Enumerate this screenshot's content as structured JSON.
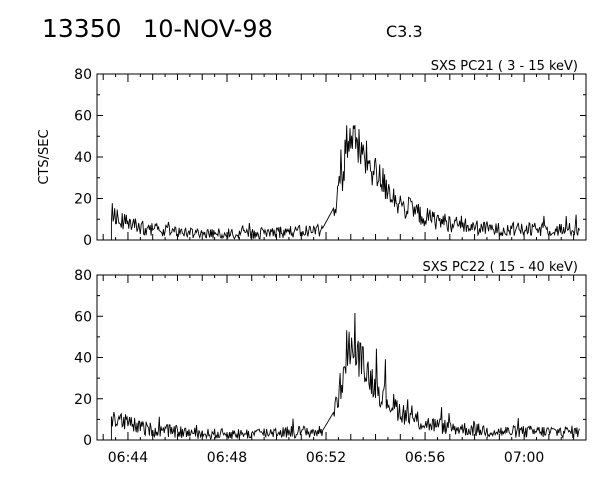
{
  "header": {
    "event_id": "13350",
    "date": "10-NOV-98",
    "flare_class": "C3.3"
  },
  "chart_data": [
    {
      "type": "line",
      "title": "SXS PC21  (  3 - 15 keV)",
      "ylabel": "CTS/SEC",
      "xlabel": "",
      "ylim": [
        0,
        80
      ],
      "y_ticks": [
        "0",
        "20",
        "40",
        "60",
        "80"
      ],
      "xlim": [
        "06:42:45",
        "07:02:30"
      ],
      "x_ticks": [
        "06:44",
        "06:48",
        "06:52",
        "06:56",
        "07:00"
      ],
      "series": [
        {
          "x": [
            "06:43:20",
            "06:43:30",
            "06:43:45",
            "06:44:00",
            "06:44:30",
            "06:45:00",
            "06:46:00",
            "06:47:00",
            "06:48:00",
            "06:49:00",
            "06:50:00",
            "06:51:00",
            "06:51:50",
            "06:52:20",
            "06:52:40",
            "06:52:50",
            "06:53:00",
            "06:53:20",
            "06:53:40",
            "06:54:00",
            "06:54:30",
            "06:55:00",
            "06:55:30",
            "06:56:00",
            "06:57:00",
            "06:58:00",
            "06:59:00",
            "07:00:00",
            "07:01:00",
            "07:02:15"
          ],
          "values": [
            14,
            12,
            10,
            8,
            6,
            5,
            4,
            3,
            3,
            3,
            4,
            4,
            5,
            16,
            30,
            48,
            50,
            44,
            38,
            32,
            25,
            17,
            14,
            11,
            8,
            6,
            5,
            5,
            5,
            5
          ]
        }
      ]
    },
    {
      "type": "line",
      "title": "SXS PC22  ( 15 - 40 keV)",
      "ylabel": "",
      "xlabel": "",
      "ylim": [
        0,
        80
      ],
      "y_ticks": [
        "0",
        "20",
        "40",
        "60",
        "80"
      ],
      "xlim": [
        "06:42:45",
        "07:02:30"
      ],
      "x_ticks": [
        "06:44",
        "06:48",
        "06:52",
        "06:56",
        "07:00"
      ],
      "series": [
        {
          "x": [
            "06:43:20",
            "06:43:30",
            "06:43:45",
            "06:44:00",
            "06:44:30",
            "06:45:00",
            "06:46:00",
            "06:47:00",
            "06:48:00",
            "06:49:00",
            "06:50:00",
            "06:51:00",
            "06:51:50",
            "06:52:20",
            "06:52:40",
            "06:52:50",
            "06:53:00",
            "06:53:20",
            "06:53:40",
            "06:54:00",
            "06:54:30",
            "06:55:00",
            "06:55:30",
            "06:56:00",
            "06:57:00",
            "06:58:00",
            "06:59:00",
            "07:00:00",
            "07:01:00",
            "07:02:15"
          ],
          "values": [
            10,
            10,
            9,
            8,
            6,
            5,
            4,
            3,
            3,
            3,
            4,
            4,
            4,
            14,
            30,
            44,
            45,
            40,
            33,
            26,
            19,
            14,
            10,
            8,
            6,
            5,
            4,
            4,
            4,
            4
          ]
        }
      ]
    }
  ]
}
